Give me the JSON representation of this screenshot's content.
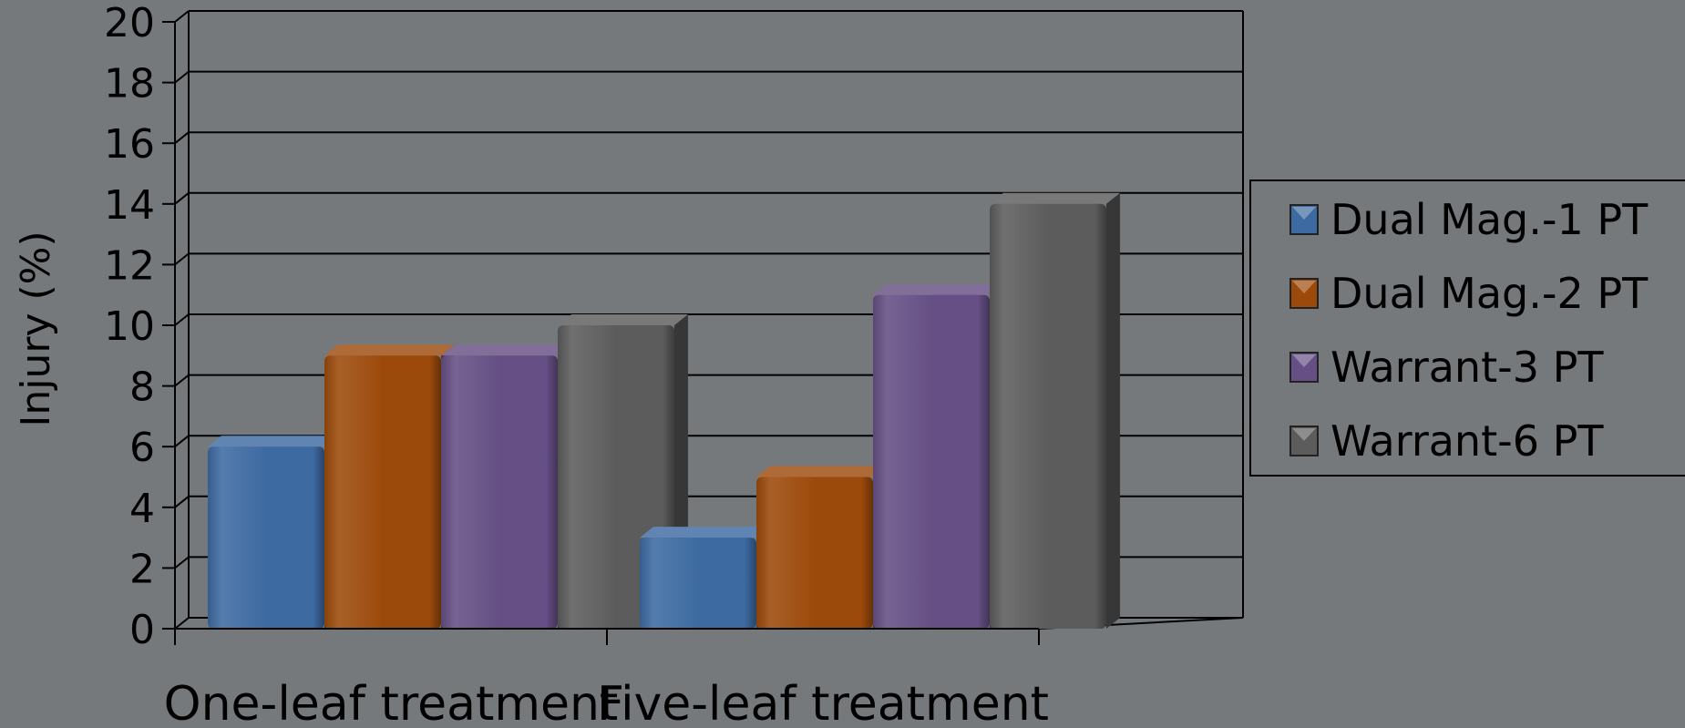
{
  "chart_data": {
    "type": "bar",
    "title": "",
    "xlabel": "",
    "ylabel": "Injury (%)",
    "ylim": [
      0,
      20
    ],
    "yticks": [
      0,
      2,
      4,
      6,
      8,
      10,
      12,
      14,
      16,
      18,
      20
    ],
    "grid": true,
    "legend_position": "right",
    "categories": [
      "One-leaf treatment",
      "Five-leaf treatment"
    ],
    "series": [
      {
        "name": "Dual Mag.-1 PT",
        "values": [
          6,
          3
        ],
        "color": "#3d6aa1"
      },
      {
        "name": "Dual Mag.-2 PT",
        "values": [
          9,
          5
        ],
        "color": "#9c4a0b"
      },
      {
        "name": "Warrant-3 PT",
        "values": [
          9,
          11
        ],
        "color": "#654f84"
      },
      {
        "name": "Warrant-6 PT",
        "values": [
          10,
          14
        ],
        "color": "#5c5c5c"
      }
    ]
  }
}
